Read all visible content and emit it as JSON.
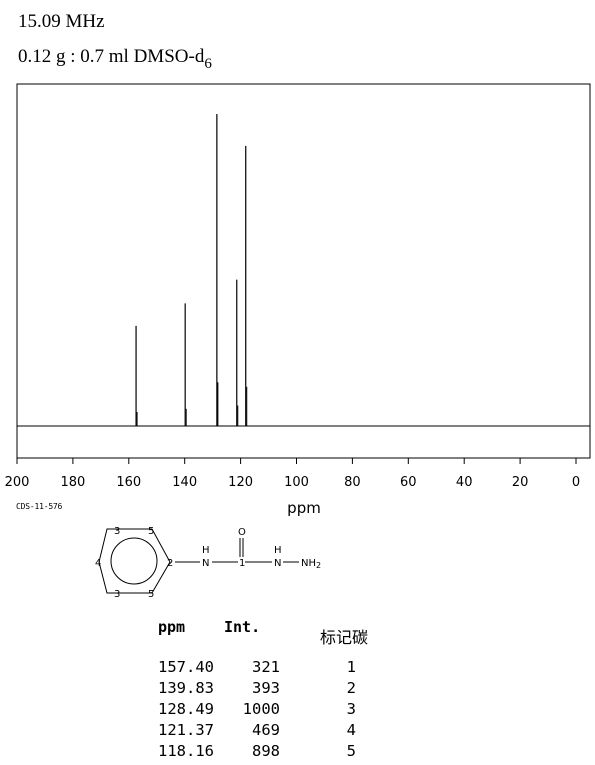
{
  "header": {
    "frequency": "15.09 MHz",
    "sample": "0.12 g : 0.7 ml DMSO-d",
    "sample_sub": "6"
  },
  "chart_data": {
    "type": "line",
    "subtype": "nmr-stick-spectrum",
    "xlabel": "ppm",
    "x_reversed": true,
    "xlim": [
      200,
      0
    ],
    "xticks": [
      200,
      180,
      160,
      140,
      120,
      100,
      80,
      60,
      40,
      20,
      0
    ],
    "ylim": [
      0,
      1000
    ],
    "grid": false,
    "peaks": [
      {
        "ppm": 157.4,
        "intensity": 321
      },
      {
        "ppm": 139.83,
        "intensity": 393
      },
      {
        "ppm": 128.49,
        "intensity": 1000
      },
      {
        "ppm": 121.37,
        "intensity": 469
      },
      {
        "ppm": 118.16,
        "intensity": 898
      }
    ]
  },
  "code": "CDS-11-576",
  "structure": {
    "ring_labels": [
      "3",
      "5",
      "4",
      "2",
      "3",
      "5"
    ],
    "atoms": [
      "H",
      "N",
      "O",
      "1",
      "H",
      "N",
      "NH",
      "2"
    ]
  },
  "table": {
    "headers": {
      "ppm": "ppm",
      "int": "Int.",
      "carbon": "标记碳"
    },
    "rows": [
      {
        "ppm": "157.40",
        "int": "321",
        "atom": "1"
      },
      {
        "ppm": "139.83",
        "int": "393",
        "atom": "2"
      },
      {
        "ppm": "128.49",
        "int": "1000",
        "atom": "3"
      },
      {
        "ppm": "121.37",
        "int": "469",
        "atom": "4"
      },
      {
        "ppm": "118.16",
        "int": "898",
        "atom": "5"
      }
    ]
  }
}
